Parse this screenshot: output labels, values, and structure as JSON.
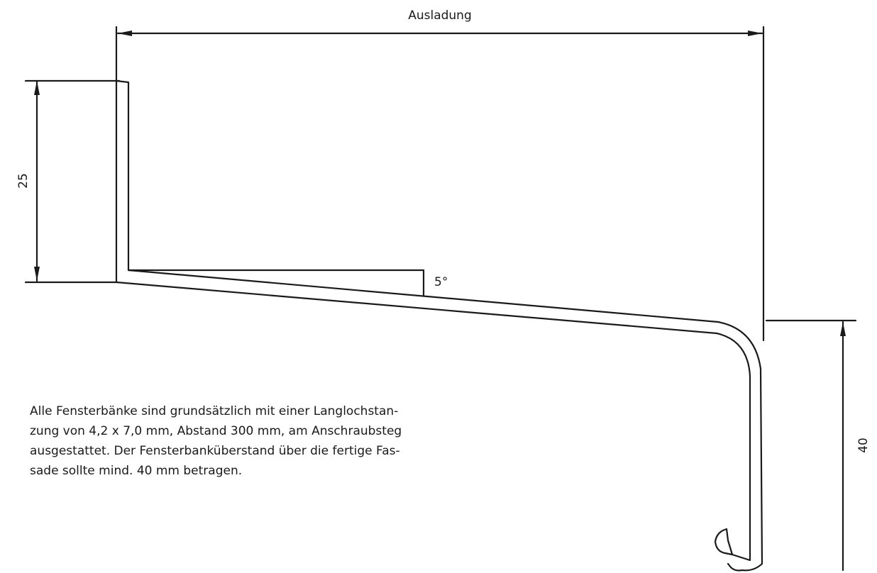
{
  "dimensions": {
    "width_label": "Ausladung",
    "height_left_label": "25",
    "height_right_label": "40",
    "angle_label": "5°"
  },
  "note": {
    "line1": "Alle Fensterbänke sind grundsätzlich mit einer Langlochstan-",
    "line2": "zung von 4,2 x 7,0 mm, Abstand 300 mm, am Anschraubsteg",
    "line3": "ausgestattet. Der Fensterbanküberstand über die fertige Fas-",
    "line4": "sade sollte mind. 40 mm betragen."
  },
  "colors": {
    "line": "#1a1a1a",
    "background": "#ffffff"
  }
}
